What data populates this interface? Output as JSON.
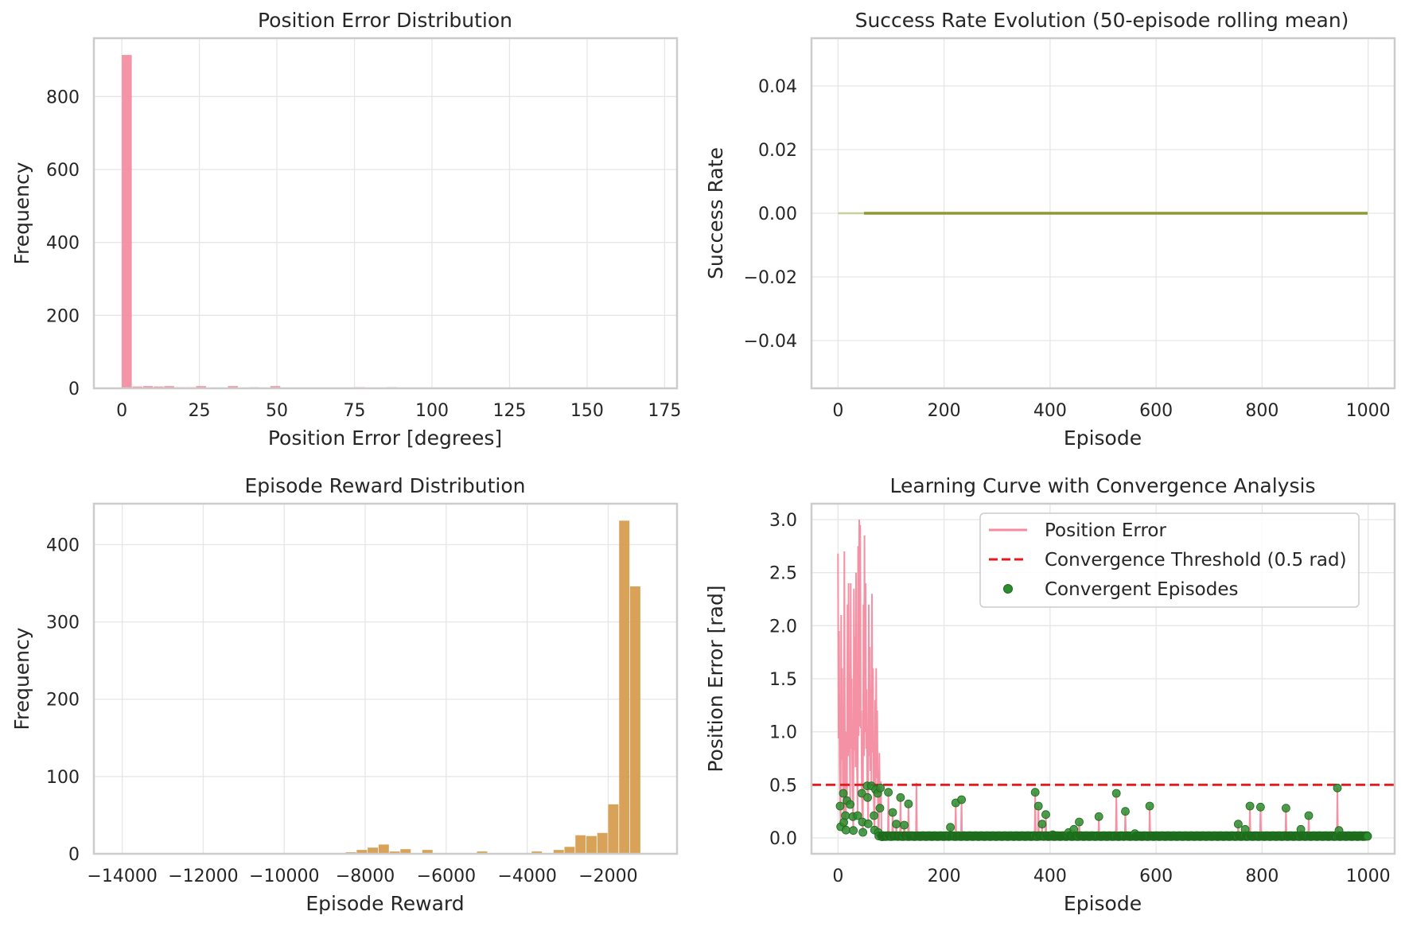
{
  "colors": {
    "hist_pink": "#f38ba0",
    "hist_orange": "#d59b4a",
    "success_line": "#8d9a33",
    "success_faint": "#c9cf9b",
    "threshold_red": "#e41a1c",
    "convergent_green": "#2e8b2e",
    "grid": "#e6e6e6",
    "spine": "#cccccc"
  },
  "chart_data": [
    {
      "id": "pos_err_hist",
      "type": "bar",
      "title": "Position Error Distribution",
      "xlabel": "Position Error [degrees]",
      "ylabel": "Frequency",
      "xlim": [
        -9,
        179
      ],
      "ylim": [
        0,
        960
      ],
      "xticks": [
        0,
        25,
        50,
        75,
        100,
        125,
        150,
        175
      ],
      "yticks": [
        0,
        200,
        400,
        600,
        800
      ],
      "bin_width": 3.42,
      "bin_start": 0,
      "values": [
        914,
        5,
        6,
        5,
        6,
        3,
        3,
        6,
        2,
        2,
        6,
        2,
        3,
        2,
        6,
        2,
        2,
        1,
        2,
        1,
        1,
        2,
        3,
        1,
        1,
        3,
        1,
        1,
        1,
        1,
        1,
        1,
        1,
        1,
        1,
        1,
        1,
        1,
        1,
        1,
        2,
        1,
        1,
        1,
        1,
        1,
        1,
        1,
        1,
        1
      ],
      "color_key": "hist_pink",
      "grid": true
    },
    {
      "id": "success_rate",
      "type": "line",
      "title": "Success Rate Evolution (50-episode rolling mean)",
      "xlabel": "Episode",
      "ylabel": "Success Rate",
      "xlim": [
        -50,
        1050
      ],
      "ylim": [
        -0.055,
        0.055
      ],
      "xticks": [
        0,
        200,
        400,
        600,
        800,
        1000
      ],
      "yticks": [
        -0.04,
        -0.02,
        0.0,
        0.02,
        0.04
      ],
      "ytick_labels": [
        "−0.04",
        "−0.02",
        "0.00",
        "0.02",
        "0.04"
      ],
      "series": [
        {
          "x": [
            0,
            49
          ],
          "y": [
            0,
            0
          ],
          "color_key": "success_faint"
        },
        {
          "x": [
            49,
            999
          ],
          "y": [
            0,
            0
          ],
          "color_key": "success_line"
        }
      ],
      "grid": true
    },
    {
      "id": "reward_hist",
      "type": "bar",
      "title": "Episode Reward Distribution",
      "xlabel": "Episode Reward",
      "ylabel": "Frequency",
      "xlim": [
        -14700,
        -300
      ],
      "ylim": [
        0,
        453
      ],
      "xticks": [
        -14000,
        -12000,
        -10000,
        -8000,
        -6000,
        -4000,
        -2000
      ],
      "xtick_labels": [
        "−14000",
        "−12000",
        "−10000",
        "−8000",
        "−6000",
        "−4000",
        "−2000"
      ],
      "yticks": [
        0,
        100,
        200,
        300,
        400
      ],
      "bin_start": -14150,
      "bin_width": 270,
      "values": [
        1,
        0,
        0,
        1,
        0,
        0,
        0,
        0,
        0,
        0,
        1,
        0,
        0,
        0,
        0,
        1,
        0,
        0,
        0,
        1,
        1,
        2,
        5,
        8,
        12,
        3,
        6,
        1,
        5,
        1,
        1,
        1,
        1,
        3,
        1,
        1,
        1,
        1,
        3,
        1,
        5,
        9,
        24,
        23,
        27,
        64,
        431,
        346
      ],
      "color_key": "hist_orange",
      "grid": true
    },
    {
      "id": "learning_curve",
      "type": "line",
      "title": "Learning Curve with Convergence Analysis",
      "xlabel": "Episode",
      "ylabel": "Position Error [rad]",
      "xlim": [
        -50,
        1050
      ],
      "ylim": [
        -0.15,
        3.15
      ],
      "xticks": [
        0,
        200,
        400,
        600,
        800,
        1000
      ],
      "yticks": [
        0.0,
        0.5,
        1.0,
        1.5,
        2.0,
        2.5,
        3.0
      ],
      "ytick_labels": [
        "0.0",
        "0.5",
        "1.0",
        "1.5",
        "2.0",
        "2.5",
        "3.0"
      ],
      "threshold": 0.5,
      "early_errors": [
        2.68,
        1.95,
        0.3,
        2.1,
        1.6,
        0.42,
        2.7,
        0.21,
        1.0,
        2.2,
        2.4,
        0.9,
        2.4,
        1.5,
        0.2,
        2.35,
        1.9,
        2.5,
        0.6,
        2.75,
        3.0,
        2.95,
        1.2,
        0.15,
        2.2,
        2.85,
        2.4,
        1.4,
        0.38,
        2.2,
        1.8,
        1.4,
        2.3,
        1.6,
        0.21,
        1.3,
        1.6,
        1.2,
        0.05,
        0.8,
        1.52,
        0.02
      ],
      "spikes": [
        [
          80,
          0.47
        ],
        [
          95,
          0.43
        ],
        [
          103,
          0.24
        ],
        [
          110,
          0.13
        ],
        [
          118,
          0.38
        ],
        [
          125,
          0.12
        ],
        [
          133,
          0.32
        ],
        [
          148,
          0.52
        ],
        [
          212,
          0.1
        ],
        [
          222,
          0.33
        ],
        [
          233,
          0.36
        ],
        [
          372,
          0.43
        ],
        [
          378,
          0.3
        ],
        [
          385,
          0.13
        ],
        [
          392,
          0.22
        ],
        [
          405,
          0.03
        ],
        [
          435,
          0.05
        ],
        [
          445,
          0.08
        ],
        [
          455,
          0.15
        ],
        [
          492,
          0.2
        ],
        [
          525,
          0.42
        ],
        [
          542,
          0.25
        ],
        [
          560,
          0.04
        ],
        [
          588,
          0.3
        ],
        [
          755,
          0.13
        ],
        [
          768,
          0.08
        ],
        [
          777,
          0.3
        ],
        [
          797,
          0.29
        ],
        [
          845,
          0.28
        ],
        [
          873,
          0.08
        ],
        [
          888,
          0.21
        ],
        [
          942,
          0.47
        ],
        [
          945,
          0.07
        ]
      ],
      "legend": [
        "Position Error",
        "Convergence Threshold (0.5 rad)",
        "Convergent Episodes"
      ],
      "legend_location": "upper right",
      "grid": true
    }
  ]
}
